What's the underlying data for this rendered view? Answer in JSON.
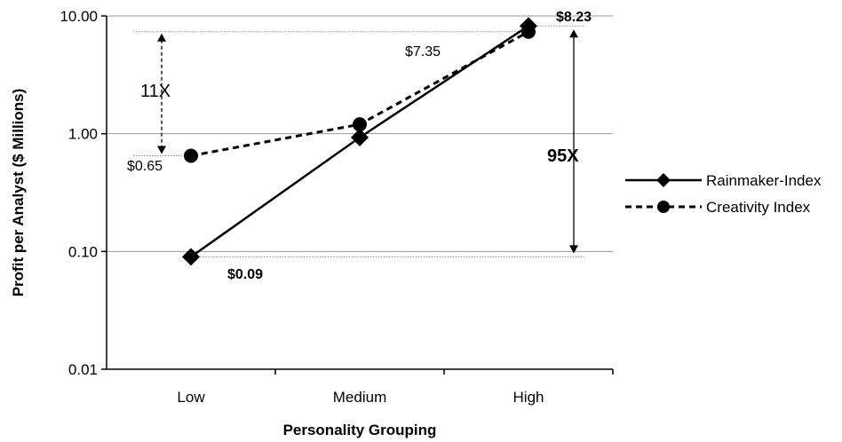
{
  "chart_data": {
    "type": "line",
    "y_scale": "log",
    "ylim": [
      0.01,
      10
    ],
    "yticks": [
      "0.01",
      "0.10",
      "1.00",
      "10.00"
    ],
    "categories": [
      "Low",
      "Medium",
      "High"
    ],
    "xlabel": "Personality Grouping",
    "ylabel": "Profit per Analyst ($ Millions)",
    "series": [
      {
        "name": "Rainmaker-Index",
        "values": [
          0.09,
          0.93,
          8.23
        ],
        "style": "solid",
        "marker": "diamond"
      },
      {
        "name": "Creativity Index",
        "values": [
          0.65,
          1.2,
          7.35
        ],
        "style": "dashed",
        "marker": "circle"
      }
    ],
    "legend_position": "right",
    "grid": "horizontal",
    "annotations": {
      "high_rain": "$8.23",
      "high_creat": "$7.35",
      "low_creat": "$0.65",
      "low_rain": "$0.09",
      "ratio_creat": "11X",
      "ratio_rain": "95X"
    }
  }
}
